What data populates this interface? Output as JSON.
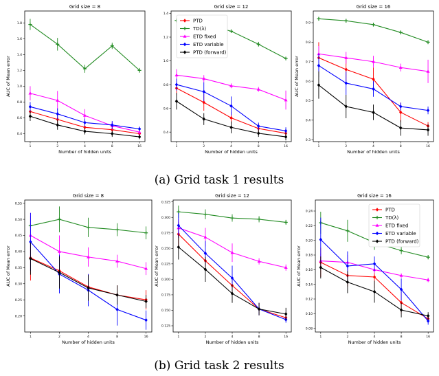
{
  "figure": {
    "captions": [
      "(a) Grid task 1 results",
      "(b) Grid task 2 results"
    ],
    "legend_entries": [
      "PTD",
      "TD(λ)",
      "ETD fixed",
      "ETD variable",
      "PTD (forward)"
    ],
    "colors": {
      "PTD": "#ff0000",
      "TD(λ)": "#228b22",
      "ETD fixed": "#ff00ff",
      "ETD variable": "#0000ff",
      "PTD (forward)": "#000000"
    }
  },
  "chart_data": [
    {
      "type": "line",
      "title": "Grid size = 8",
      "xlabel": "Number of hidden units",
      "ylabel": "AUC of Mean error",
      "x": [
        1,
        2,
        4,
        8,
        16
      ],
      "x_scale": "log2",
      "ylim": [
        0.3,
        1.95
      ],
      "yticks": [
        0.4,
        0.6,
        0.8,
        1.0,
        1.2,
        1.4,
        1.6,
        1.8
      ],
      "ytick_labels": [
        "0.4",
        "0.6",
        "0.8",
        "1.0",
        "1.2",
        "1.4",
        "1.6",
        "1.8"
      ],
      "legend": false,
      "series": [
        {
          "name": "PTD",
          "values": [
            0.68,
            0.58,
            0.48,
            0.45,
            0.4
          ],
          "err": [
            0.05,
            0.05,
            0.04,
            0.04,
            0.03
          ]
        },
        {
          "name": "TD(λ)",
          "values": [
            1.78,
            1.53,
            1.22,
            1.51,
            1.2
          ],
          "err": [
            0.07,
            0.08,
            0.05,
            0.04,
            0.03
          ]
        },
        {
          "name": "ETD fixed",
          "values": [
            0.91,
            0.82,
            0.63,
            0.5,
            0.42
          ],
          "err": [
            0.09,
            0.12,
            0.08,
            0.05,
            0.04
          ]
        },
        {
          "name": "ETD variable",
          "values": [
            0.74,
            0.65,
            0.54,
            0.51,
            0.46
          ],
          "err": [
            0.06,
            0.07,
            0.05,
            0.05,
            0.03
          ]
        },
        {
          "name": "PTD (forward)",
          "values": [
            0.62,
            0.51,
            0.43,
            0.4,
            0.36
          ],
          "err": [
            0.06,
            0.06,
            0.04,
            0.04,
            0.03
          ]
        }
      ]
    },
    {
      "type": "line",
      "title": "Grid size = 12",
      "xlabel": "Number of hidden units",
      "ylabel": "",
      "x": [
        1,
        2,
        4,
        8,
        16
      ],
      "x_scale": "log2",
      "ylim": [
        0.32,
        1.42
      ],
      "yticks": [
        0.4,
        0.6,
        0.8,
        1.0,
        1.2,
        1.4
      ],
      "ytick_labels": [
        "0.4",
        "0.6",
        "0.8",
        "1.0",
        "1.2",
        "1.4"
      ],
      "legend": true,
      "legend_position": "top-left",
      "series": [
        {
          "name": "PTD",
          "values": [
            0.77,
            0.65,
            0.52,
            0.43,
            0.39
          ],
          "err": [
            0.06,
            0.07,
            0.05,
            0.04,
            0.03
          ]
        },
        {
          "name": "TD(λ)",
          "values": [
            1.34,
            1.31,
            1.25,
            1.14,
            1.02
          ],
          "err": [
            0.01,
            0.01,
            0.01,
            0.02,
            0.01
          ]
        },
        {
          "name": "ETD fixed",
          "values": [
            0.88,
            0.85,
            0.79,
            0.76,
            0.67
          ],
          "err": [
            0.05,
            0.03,
            0.02,
            0.02,
            0.08
          ]
        },
        {
          "name": "ETD variable",
          "values": [
            0.8,
            0.74,
            0.62,
            0.45,
            0.41
          ],
          "err": [
            0.05,
            0.08,
            0.08,
            0.03,
            0.03
          ]
        },
        {
          "name": "PTD (forward)",
          "values": [
            0.66,
            0.51,
            0.44,
            0.39,
            0.36
          ],
          "err": [
            0.07,
            0.05,
            0.05,
            0.03,
            0.03
          ]
        }
      ]
    },
    {
      "type": "line",
      "title": "Grid size = 16",
      "xlabel": "Number of hidden units",
      "ylabel": "AUC of Mean error",
      "x": [
        1,
        2,
        4,
        8,
        16
      ],
      "x_scale": "log2",
      "ylim": [
        0.29,
        0.96
      ],
      "yticks": [
        0.3,
        0.4,
        0.5,
        0.6,
        0.7,
        0.8,
        0.9
      ],
      "ytick_labels": [
        "0.3",
        "0.4",
        "0.5",
        "0.6",
        "0.7",
        "0.8",
        "0.9"
      ],
      "legend": false,
      "series": [
        {
          "name": "PTD",
          "values": [
            0.72,
            0.66,
            0.61,
            0.44,
            0.37
          ],
          "err": [
            0.08,
            0.06,
            0.06,
            0.05,
            0.02
          ]
        },
        {
          "name": "TD(λ)",
          "values": [
            0.92,
            0.91,
            0.89,
            0.85,
            0.8
          ],
          "err": [
            0.01,
            0.01,
            0.01,
            0.01,
            0.01
          ]
        },
        {
          "name": "ETD fixed",
          "values": [
            0.74,
            0.72,
            0.7,
            0.67,
            0.65
          ],
          "err": [
            0.04,
            0.03,
            0.03,
            0.02,
            0.06
          ]
        },
        {
          "name": "ETD variable",
          "values": [
            0.68,
            0.59,
            0.56,
            0.47,
            0.45
          ],
          "err": [
            0.06,
            0.06,
            0.04,
            0.02,
            0.02
          ]
        },
        {
          "name": "PTD (forward)",
          "values": [
            0.58,
            0.47,
            0.44,
            0.36,
            0.35
          ],
          "err": [
            0.07,
            0.06,
            0.04,
            0.04,
            0.03
          ]
        }
      ]
    },
    {
      "type": "line",
      "title": "Grid size = 8",
      "xlabel": "Number of hidden units",
      "ylabel": "AUC of Mean error",
      "x": [
        1,
        2,
        4,
        8,
        16
      ],
      "x_scale": "log2",
      "ylim": [
        0.15,
        0.56
      ],
      "yticks": [
        0.2,
        0.25,
        0.3,
        0.35,
        0.4,
        0.45,
        0.5,
        0.55
      ],
      "ytick_labels": [
        "0.20",
        "0.25",
        "0.30",
        "0.35",
        "0.40",
        "0.45",
        "0.50",
        "0.55"
      ],
      "legend": false,
      "series": [
        {
          "name": "PTD",
          "values": [
            0.38,
            0.34,
            0.29,
            0.265,
            0.25
          ],
          "err": [
            0.07,
            0.05,
            0.04,
            0.03,
            0.03
          ]
        },
        {
          "name": "TD(λ)",
          "values": [
            0.48,
            0.5,
            0.475,
            0.468,
            0.458
          ],
          "err": [
            0.03,
            0.04,
            0.03,
            0.02,
            0.02
          ]
        },
        {
          "name": "ETD fixed",
          "values": [
            0.45,
            0.4,
            0.383,
            0.37,
            0.347
          ],
          "err": [
            0.07,
            0.05,
            0.03,
            0.02,
            0.02
          ]
        },
        {
          "name": "ETD variable",
          "values": [
            0.43,
            0.33,
            0.28,
            0.22,
            0.187
          ],
          "err": [
            0.09,
            0.06,
            0.05,
            0.05,
            0.03
          ]
        },
        {
          "name": "PTD (forward)",
          "values": [
            0.378,
            0.335,
            0.287,
            0.265,
            0.245
          ],
          "err": [
            0.05,
            0.05,
            0.04,
            0.03,
            0.02
          ]
        }
      ]
    },
    {
      "type": "line",
      "title": "Grid size = 12",
      "xlabel": "Number of hidden units",
      "ylabel": "AUC of Mean error",
      "x": [
        1,
        2,
        4,
        8,
        16
      ],
      "x_scale": "log2",
      "ylim": [
        0.115,
        0.328
      ],
      "yticks": [
        0.125,
        0.15,
        0.175,
        0.2,
        0.225,
        0.25,
        0.275,
        0.3,
        0.325
      ],
      "ytick_labels": [
        "0.125",
        "0.150",
        "0.175",
        "0.200",
        "0.225",
        "0.250",
        "0.275",
        "0.300",
        "0.325"
      ],
      "legend": false,
      "series": [
        {
          "name": "PTD",
          "values": [
            0.273,
            0.23,
            0.19,
            0.152,
            0.138
          ],
          "err": [
            0.02,
            0.015,
            0.01,
            0.01,
            0.005
          ]
        },
        {
          "name": "TD(λ)",
          "values": [
            0.309,
            0.305,
            0.299,
            0.297,
            0.292
          ],
          "err": [
            0.01,
            0.008,
            0.006,
            0.005,
            0.004
          ]
        },
        {
          "name": "ETD fixed",
          "values": [
            0.283,
            0.268,
            0.243,
            0.229,
            0.219
          ],
          "err": [
            0.015,
            0.015,
            0.015,
            0.005,
            0.005
          ]
        },
        {
          "name": "ETD variable",
          "values": [
            0.287,
            0.242,
            0.202,
            0.152,
            0.135
          ],
          "err": [
            0.02,
            0.02,
            0.02,
            0.01,
            0.005
          ]
        },
        {
          "name": "PTD (forward)",
          "values": [
            0.252,
            0.216,
            0.177,
            0.152,
            0.144
          ],
          "err": [
            0.02,
            0.02,
            0.015,
            0.01,
            0.01
          ]
        }
      ]
    },
    {
      "type": "line",
      "title": "Grid size = 16",
      "xlabel": "Number of hidden units",
      "ylabel": "AUC of Mean error",
      "x": [
        1,
        2,
        4,
        8,
        16
      ],
      "x_scale": "log2",
      "ylim": [
        0.075,
        0.255
      ],
      "yticks": [
        0.08,
        0.1,
        0.12,
        0.14,
        0.16,
        0.18,
        0.2,
        0.22,
        0.24
      ],
      "ytick_labels": [
        "0.08",
        "0.10",
        "0.12",
        "0.14",
        "0.16",
        "0.18",
        "0.20",
        "0.22",
        "0.24"
      ],
      "legend": true,
      "legend_position": "top-right",
      "series": [
        {
          "name": "PTD",
          "values": [
            0.17,
            0.152,
            0.15,
            0.115,
            0.093
          ],
          "err": [
            0.02,
            0.015,
            0.015,
            0.015,
            0.005
          ]
        },
        {
          "name": "TD(λ)",
          "values": [
            0.224,
            0.213,
            0.197,
            0.186,
            0.177
          ],
          "err": [
            0.015,
            0.015,
            0.01,
            0.005,
            0.003
          ]
        },
        {
          "name": "ETD fixed",
          "values": [
            0.172,
            0.17,
            0.16,
            0.152,
            0.146
          ],
          "err": [
            0.01,
            0.01,
            0.005,
            0.003,
            0.003
          ]
        },
        {
          "name": "ETD variable",
          "values": [
            0.201,
            0.165,
            0.168,
            0.133,
            0.09
          ],
          "err": [
            0.03,
            0.02,
            0.01,
            0.015,
            0.005
          ]
        },
        {
          "name": "PTD (forward)",
          "values": [
            0.163,
            0.143,
            0.13,
            0.105,
            0.097
          ],
          "err": [
            0.015,
            0.015,
            0.015,
            0.01,
            0.005
          ]
        }
      ]
    }
  ]
}
